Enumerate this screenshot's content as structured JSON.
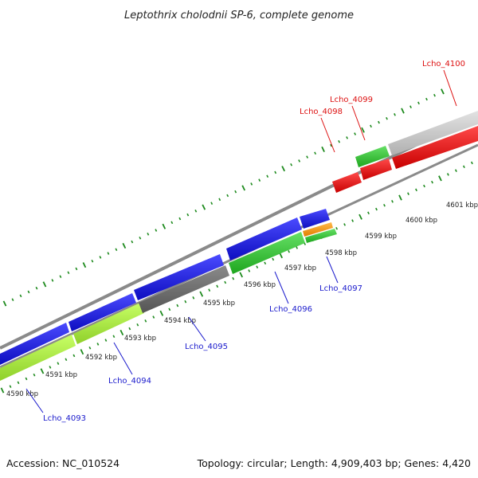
{
  "title": "Leptothrix cholodnii SP-6, complete genome",
  "footer": {
    "accession": "Accession: NC_010524",
    "summary": "Topology: circular; Length: 4,909,403 bp; Genes: 4,420"
  },
  "colors": {
    "blue": "#1a1ae0",
    "red": "#ee1111",
    "green": "#33cc33",
    "lime": "#aaee44",
    "dark_gray": "#6e6e6e",
    "light_gray": "#c8c8c8",
    "orange": "#ff9900",
    "backbone": "#888888",
    "tick": "#1d8a1d",
    "label_blue": "#1a1acc",
    "label_red": "#dd1111"
  },
  "kbp_labels": [
    "4590 kbp",
    "4591 kbp",
    "4592 kbp",
    "4593 kbp",
    "4594 kbp",
    "4595 kbp",
    "4596 kbp",
    "4597 kbp",
    "4598 kbp",
    "4599 kbp",
    "4600 kbp",
    "4601 kbp"
  ],
  "gene_labels": {
    "lcho_4093": "Lcho_4093",
    "lcho_4094": "Lcho_4094",
    "lcho_4095": "Lcho_4095",
    "lcho_4096": "Lcho_4096",
    "lcho_4097": "Lcho_4097",
    "lcho_4098": "Lcho_4098",
    "lcho_4099": "Lcho_4099",
    "lcho_4100": "Lcho_4100"
  }
}
